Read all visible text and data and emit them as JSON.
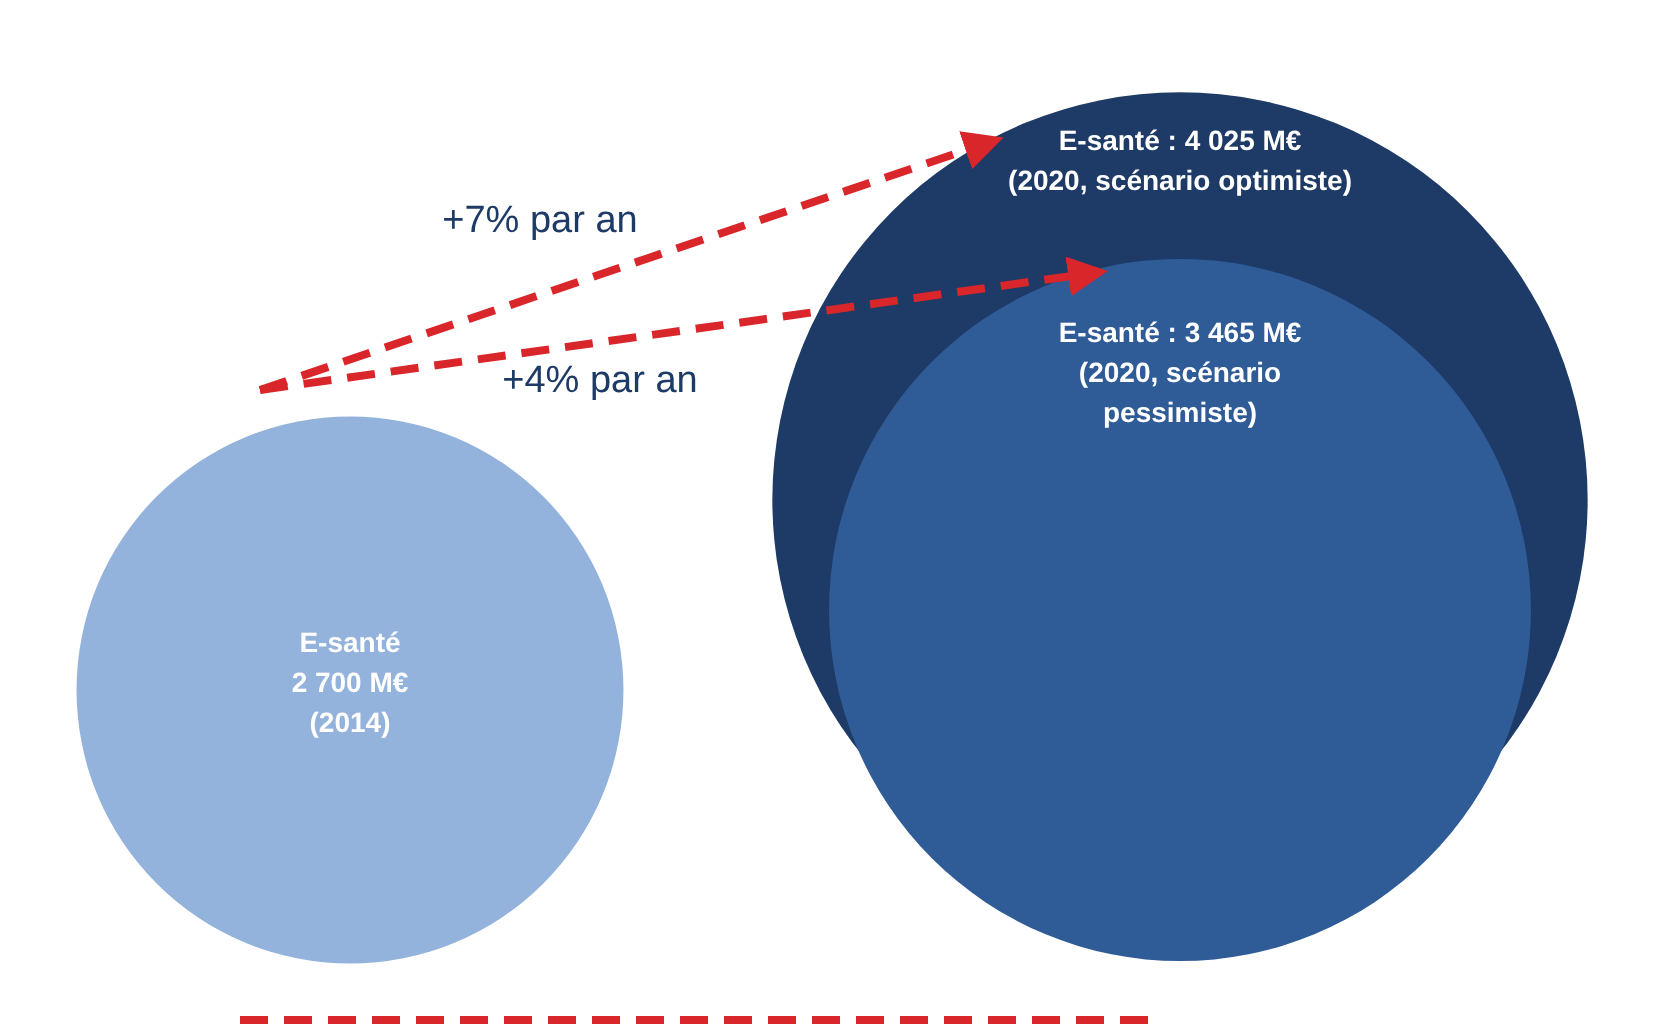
{
  "chart_data": {
    "type": "other",
    "categories": [
      "(2014)",
      "(2020, scénario optimiste)",
      "(2020, scénario pessimiste)"
    ],
    "values": [
      2700,
      4025,
      3465
    ],
    "colors": [
      "#94b3dc",
      "#1e3a66",
      "#2f5b97"
    ],
    "value_labels": [
      "E-santé\n2 700 M€",
      "E-santé : 4 025 M€",
      "E-santé : 3 465 M€"
    ],
    "annotations": [
      "+7% par an",
      "+4% par an"
    ]
  }
}
